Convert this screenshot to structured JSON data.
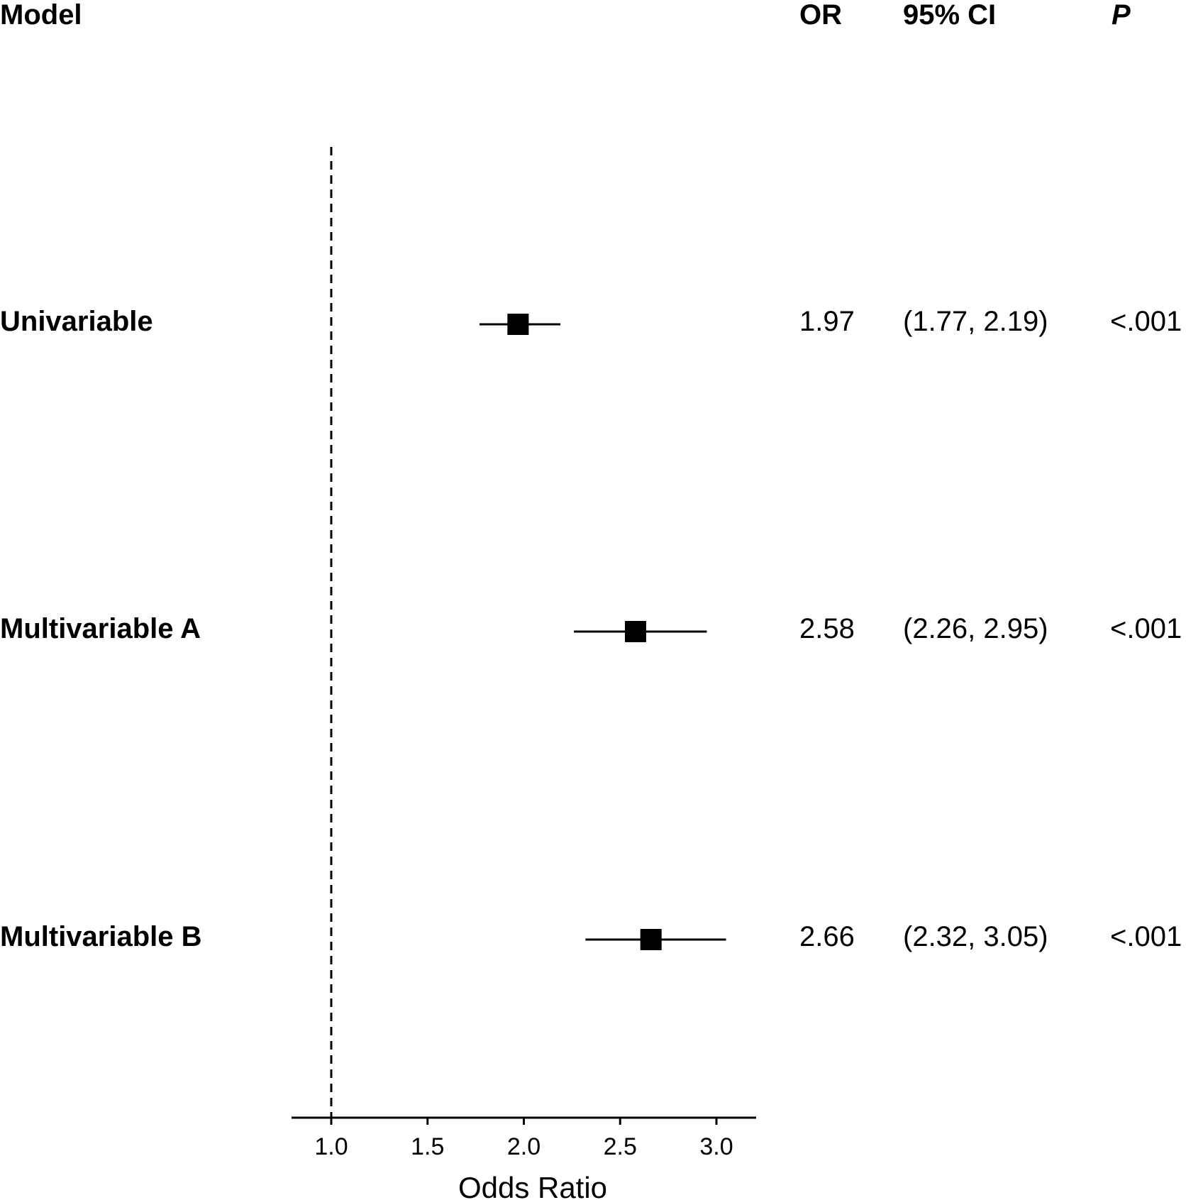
{
  "table": {
    "headers": {
      "model": "Model",
      "or": "OR",
      "ci": "95% CI",
      "p": "P"
    },
    "rows": [
      {
        "label": "Univariable",
        "or_text": "1.97",
        "ci_text": "(1.77, 2.19)",
        "p_text": "<.001"
      },
      {
        "label": "Multivariable A",
        "or_text": "2.58",
        "ci_text": "(2.26, 2.95)",
        "p_text": "<.001"
      },
      {
        "label": "Multivariable B",
        "or_text": "2.66",
        "ci_text": "(2.32, 3.05)",
        "p_text": "<.001"
      }
    ]
  },
  "chart_data": {
    "type": "scatter",
    "subtype": "forest",
    "title": "",
    "xlabel": "Odds Ratio",
    "ylabel": "",
    "xlim": [
      0.8,
      3.2
    ],
    "xticks": [
      1.0,
      1.5,
      2.0,
      2.5,
      3.0
    ],
    "xtick_labels": [
      "1.0",
      "1.5",
      "2.0",
      "2.5",
      "3.0"
    ],
    "reference_line": 1.0,
    "reference_line_style": "dashed",
    "marker": "square",
    "grid": false,
    "legend": "none",
    "colors": {
      "marker": "#000000",
      "line": "#000000"
    },
    "categories": [
      "Univariable",
      "Multivariable A",
      "Multivariable B"
    ],
    "estimates": [
      1.97,
      2.58,
      2.66
    ],
    "ci_lower": [
      1.77,
      2.26,
      2.32
    ],
    "ci_upper": [
      2.19,
      2.95,
      3.05
    ]
  }
}
